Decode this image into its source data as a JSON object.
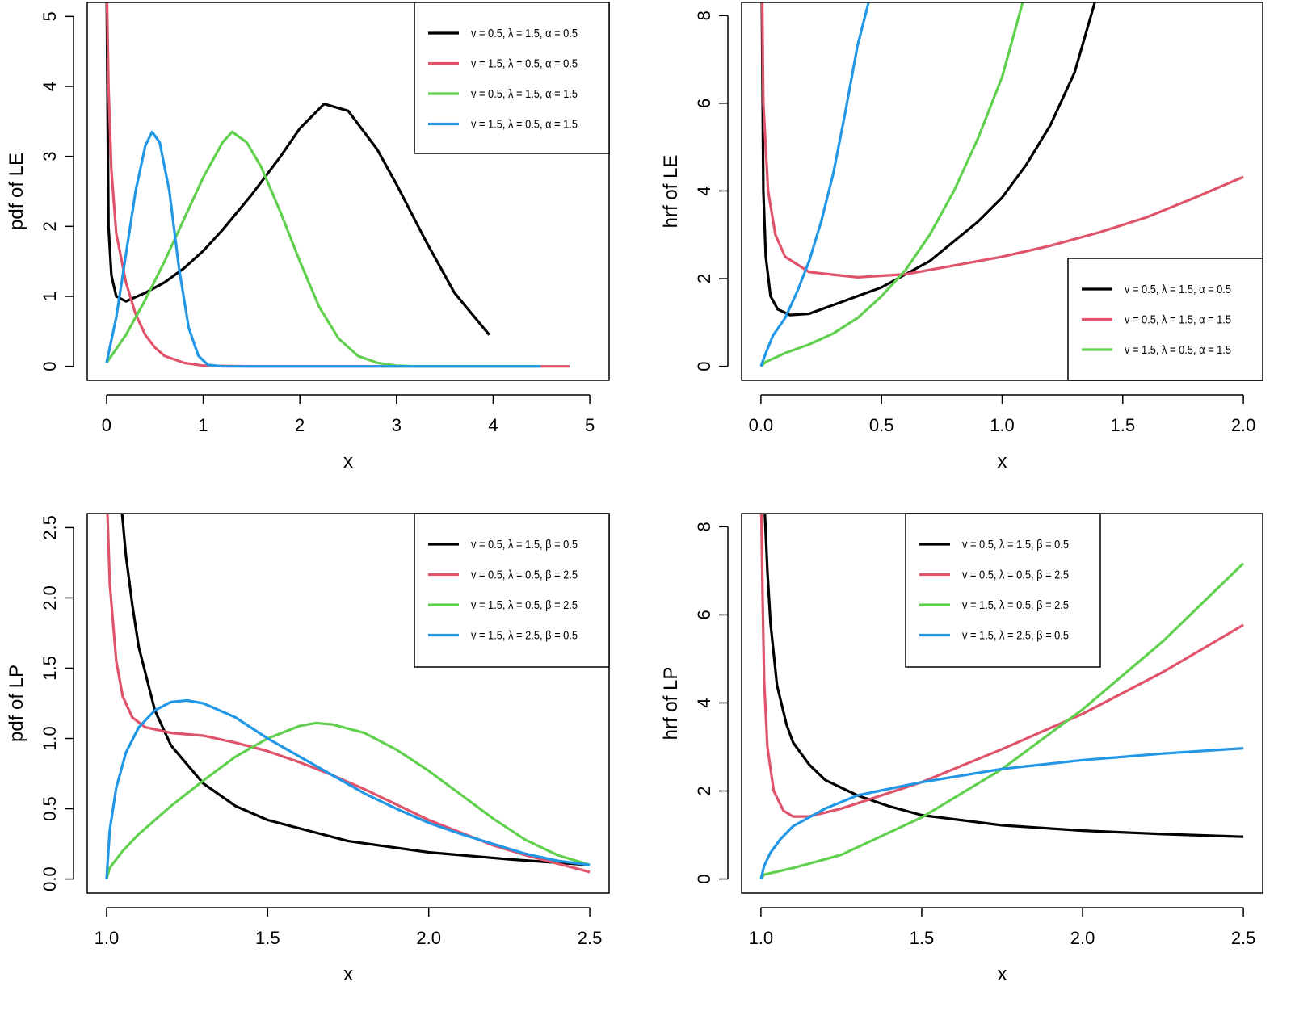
{
  "chart_data": [
    {
      "type": "line",
      "xlabel": "x",
      "ylabel": "pdf of LE",
      "xlim": [
        -0.2,
        5.2
      ],
      "ylim": [
        -0.2,
        5.2
      ],
      "xticks": [
        "0",
        "1",
        "2",
        "3",
        "4",
        "5"
      ],
      "yticks": [
        "0",
        "1",
        "2",
        "3",
        "4",
        "5"
      ],
      "legend_position": "top-right",
      "series": [
        {
          "name": "v = 0.5, λ = 1.5, α = 0.5",
          "color": "#000000",
          "x": [
            0,
            0.02,
            0.05,
            0.1,
            0.2,
            0.4,
            0.6,
            0.8,
            1.0,
            1.2,
            1.5,
            1.8,
            2.0,
            2.25,
            2.5,
            2.8,
            3.0,
            3.3,
            3.6,
            3.96
          ],
          "y": [
            5.6,
            2.0,
            1.3,
            1.0,
            0.93,
            1.05,
            1.2,
            1.4,
            1.65,
            1.95,
            2.45,
            3.0,
            3.4,
            3.75,
            3.65,
            3.1,
            2.6,
            1.8,
            1.05,
            0.45
          ]
        },
        {
          "name": "v = 1.5, λ = 0.5, α = 0.5",
          "color": "#DF536B",
          "x": [
            0,
            0.02,
            0.05,
            0.1,
            0.2,
            0.3,
            0.4,
            0.5,
            0.6,
            0.8,
            1.0,
            1.5,
            4.79
          ],
          "y": [
            5.6,
            4.0,
            2.8,
            1.9,
            1.2,
            0.75,
            0.45,
            0.27,
            0.15,
            0.05,
            0.01,
            0,
            0
          ]
        },
        {
          "name": "v = 0.5, λ = 1.5, α = 1.5",
          "color": "#61D04F",
          "x": [
            0,
            0.2,
            0.4,
            0.6,
            0.8,
            1.0,
            1.2,
            1.3,
            1.45,
            1.6,
            1.8,
            2.0,
            2.2,
            2.4,
            2.6,
            2.8,
            3.0,
            3.2,
            4.49
          ],
          "y": [
            0.05,
            0.45,
            0.95,
            1.5,
            2.1,
            2.7,
            3.2,
            3.35,
            3.2,
            2.85,
            2.2,
            1.5,
            0.85,
            0.4,
            0.15,
            0.05,
            0.01,
            0,
            0
          ]
        },
        {
          "name": "v = 1.5, λ = 0.5, α = 1.5",
          "color": "#2297E6",
          "x": [
            0,
            0.1,
            0.2,
            0.3,
            0.4,
            0.47,
            0.55,
            0.65,
            0.75,
            0.85,
            0.95,
            1.05,
            1.2,
            4.49
          ],
          "y": [
            0.05,
            0.7,
            1.6,
            2.5,
            3.15,
            3.35,
            3.2,
            2.5,
            1.4,
            0.55,
            0.15,
            0.02,
            0,
            0
          ]
        }
      ]
    },
    {
      "type": "line",
      "xlabel": "x",
      "ylabel": "hrf of LE",
      "xlim": [
        -0.08,
        2.08
      ],
      "ylim": [
        -0.32,
        8.3
      ],
      "xticks": [
        "0.0",
        "0.5",
        "1.0",
        "1.5",
        "2.0"
      ],
      "yticks": [
        "0",
        "2",
        "4",
        "6",
        "8"
      ],
      "legend_position": "bottom-right",
      "series": [
        {
          "name": "v = 0.5, λ = 1.5, α = 0.5",
          "color": "#000000",
          "x": [
            0.003,
            0.01,
            0.02,
            0.04,
            0.07,
            0.12,
            0.2,
            0.3,
            0.5,
            0.7,
            0.9,
            1.0,
            1.1,
            1.2,
            1.3,
            1.4
          ],
          "y": [
            9,
            4,
            2.5,
            1.6,
            1.3,
            1.17,
            1.2,
            1.4,
            1.8,
            2.4,
            3.3,
            3.85,
            4.6,
            5.5,
            6.7,
            8.6
          ]
        },
        {
          "name": "v = 0.5, λ = 1.5, α = 1.5",
          "color": "#DF536B",
          "x": [
            0.004,
            0.01,
            0.03,
            0.06,
            0.1,
            0.2,
            0.4,
            0.6,
            0.8,
            1.0,
            1.2,
            1.4,
            1.6,
            1.8,
            2.0
          ],
          "y": [
            9,
            6,
            4,
            3,
            2.5,
            2.15,
            2.03,
            2.1,
            2.3,
            2.5,
            2.75,
            3.05,
            3.4,
            3.85,
            4.32
          ]
        },
        {
          "name": "v = 1.5, λ = 0.5, α = 1.5",
          "color": "#61D04F",
          "x": [
            0,
            0.02,
            0.1,
            0.2,
            0.3,
            0.4,
            0.5,
            0.6,
            0.7,
            0.8,
            0.9,
            1.0,
            1.1
          ],
          "y": [
            0,
            0.1,
            0.3,
            0.5,
            0.75,
            1.1,
            1.6,
            2.2,
            3.0,
            4.0,
            5.2,
            6.6,
            8.6
          ]
        },
        {
          "name": "",
          "color": "#2297E6",
          "x": [
            0,
            0.02,
            0.05,
            0.1,
            0.15,
            0.2,
            0.25,
            0.3,
            0.35,
            0.4,
            0.46
          ],
          "y": [
            0,
            0.3,
            0.7,
            1.1,
            1.7,
            2.4,
            3.3,
            4.4,
            5.8,
            7.3,
            8.6
          ]
        }
      ]
    },
    {
      "type": "line",
      "xlabel": "x",
      "ylabel": "pdf of LP",
      "xlim": [
        0.94,
        2.56
      ],
      "ylim": [
        -0.1,
        2.6
      ],
      "xticks": [
        "1.0",
        "1.5",
        "2.0",
        "2.5"
      ],
      "yticks": [
        "0.0",
        "0.5",
        "1.0",
        "1.5",
        "2.0",
        "2.5"
      ],
      "legend_position": "top-right",
      "series": [
        {
          "name": "v = 0.5, λ = 1.5, β = 0.5",
          "color": "#000000",
          "x": [
            1.04,
            1.06,
            1.08,
            1.1,
            1.15,
            1.2,
            1.3,
            1.4,
            1.5,
            1.75,
            2.0,
            2.25,
            2.5
          ],
          "y": [
            2.8,
            2.3,
            1.95,
            1.65,
            1.2,
            0.95,
            0.68,
            0.52,
            0.42,
            0.27,
            0.19,
            0.14,
            0.1
          ]
        },
        {
          "name": "v = 0.5, λ = 0.5, β = 2.5",
          "color": "#DF536B",
          "x": [
            1.0,
            1.01,
            1.03,
            1.05,
            1.08,
            1.12,
            1.2,
            1.3,
            1.4,
            1.5,
            1.6,
            1.7,
            1.8,
            1.9,
            2.0,
            2.1,
            2.2,
            2.3,
            2.4,
            2.5
          ],
          "y": [
            2.8,
            2.1,
            1.55,
            1.3,
            1.15,
            1.08,
            1.04,
            1.02,
            0.97,
            0.91,
            0.83,
            0.74,
            0.64,
            0.53,
            0.42,
            0.33,
            0.24,
            0.17,
            0.11,
            0.05
          ]
        },
        {
          "name": "v = 1.5, λ = 0.5, β = 2.5",
          "color": "#61D04F",
          "x": [
            1.0,
            1.01,
            1.05,
            1.1,
            1.2,
            1.3,
            1.4,
            1.5,
            1.6,
            1.65,
            1.7,
            1.8,
            1.9,
            2.0,
            2.1,
            2.2,
            2.3,
            2.4,
            2.5
          ],
          "y": [
            0,
            0.08,
            0.2,
            0.32,
            0.52,
            0.7,
            0.87,
            1.0,
            1.09,
            1.11,
            1.1,
            1.04,
            0.92,
            0.77,
            0.6,
            0.43,
            0.28,
            0.17,
            0.1
          ]
        },
        {
          "name": "v = 1.5, λ = 2.5, β = 0.5",
          "color": "#2297E6",
          "x": [
            1.0,
            1.01,
            1.03,
            1.06,
            1.1,
            1.15,
            1.2,
            1.25,
            1.3,
            1.4,
            1.5,
            1.6,
            1.7,
            1.8,
            1.9,
            2.0,
            2.1,
            2.2,
            2.3,
            2.4,
            2.5
          ],
          "y": [
            0,
            0.35,
            0.65,
            0.9,
            1.08,
            1.2,
            1.26,
            1.27,
            1.25,
            1.15,
            1.0,
            0.87,
            0.74,
            0.61,
            0.5,
            0.4,
            0.32,
            0.25,
            0.18,
            0.13,
            0.1
          ]
        }
      ]
    },
    {
      "type": "line",
      "xlabel": "x",
      "ylabel": "hrf of LP",
      "xlim": [
        0.94,
        2.56
      ],
      "ylim": [
        -0.32,
        8.3
      ],
      "xticks": [
        "1.0",
        "1.5",
        "2.0",
        "2.5"
      ],
      "yticks": [
        "0",
        "2",
        "4",
        "6",
        "8"
      ],
      "legend_position": "top-center",
      "series": [
        {
          "name": "v = 0.5, λ = 1.5, β = 0.5",
          "color": "#000000",
          "x": [
            1.008,
            1.02,
            1.03,
            1.05,
            1.08,
            1.1,
            1.15,
            1.2,
            1.3,
            1.4,
            1.5,
            1.75,
            2.0,
            2.25,
            2.5
          ],
          "y": [
            9,
            7,
            5.8,
            4.4,
            3.5,
            3.1,
            2.6,
            2.25,
            1.9,
            1.65,
            1.45,
            1.22,
            1.1,
            1.02,
            0.96
          ]
        },
        {
          "name": "v = 0.5, λ = 0.5, β = 2.5",
          "color": "#DF536B",
          "x": [
            1.0,
            1.005,
            1.01,
            1.02,
            1.04,
            1.07,
            1.1,
            1.15,
            1.25,
            1.5,
            1.75,
            2.0,
            2.25,
            2.5
          ],
          "y": [
            9,
            6.5,
            4.5,
            3,
            2,
            1.55,
            1.42,
            1.42,
            1.6,
            2.2,
            2.95,
            3.75,
            4.7,
            5.77
          ]
        },
        {
          "name": "v = 1.5, λ = 0.5, β = 2.5",
          "color": "#61D04F",
          "x": [
            1.0,
            1.01,
            1.1,
            1.25,
            1.5,
            1.75,
            2.0,
            2.25,
            2.5
          ],
          "y": [
            0,
            0.1,
            0.25,
            0.55,
            1.4,
            2.5,
            3.85,
            5.4,
            7.17
          ]
        },
        {
          "name": "v = 1.5, λ = 2.5, β = 0.5",
          "color": "#2297E6",
          "x": [
            1.0,
            1.01,
            1.03,
            1.06,
            1.1,
            1.2,
            1.3,
            1.5,
            1.75,
            2.0,
            2.25,
            2.5
          ],
          "y": [
            0,
            0.3,
            0.6,
            0.9,
            1.2,
            1.6,
            1.9,
            2.2,
            2.5,
            2.7,
            2.85,
            2.97
          ]
        }
      ]
    }
  ]
}
